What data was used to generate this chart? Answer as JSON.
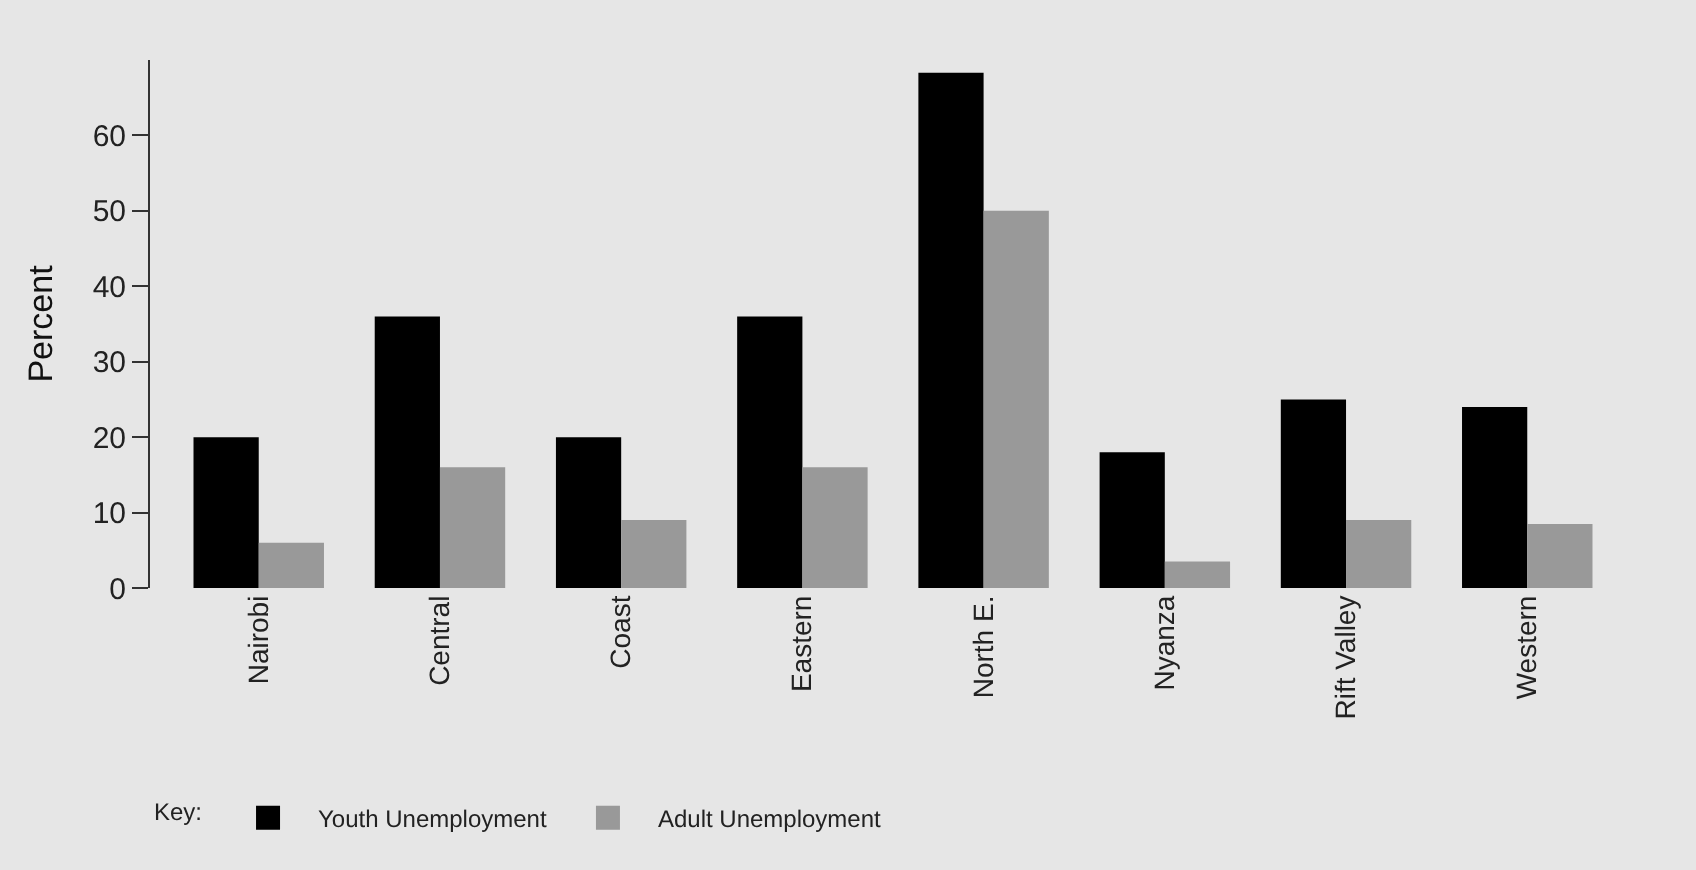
{
  "chart_data": {
    "type": "bar",
    "ylabel": "Percent",
    "legend_title": "Key:",
    "legend": "bottom",
    "grid": false,
    "categories": [
      "Nairobi",
      "Central",
      "Coast",
      "Eastern",
      "North E.",
      "Nyanza",
      "Rift Valley",
      "Western"
    ],
    "series": [
      {
        "name": "Youth Unemployment",
        "color": "#000000",
        "values": [
          20,
          36,
          20,
          36,
          68.3,
          18,
          25,
          24
        ]
      },
      {
        "name": "Adult Unemployment",
        "color": "#999999",
        "values": [
          6,
          16,
          9,
          16,
          50,
          3.5,
          9,
          8.5
        ]
      }
    ],
    "ylim": [
      0,
      70
    ],
    "yticks": [
      0,
      10,
      20,
      30,
      40,
      50,
      60
    ]
  }
}
